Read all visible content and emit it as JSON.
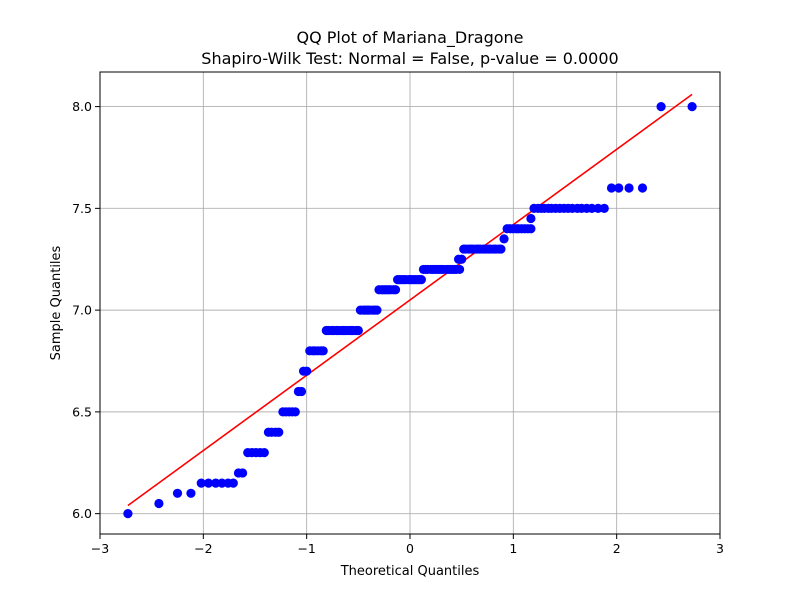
{
  "chart_data": {
    "type": "scatter",
    "title": "QQ Plot of Mariana_Dragone",
    "subtitle": "Shapiro-Wilk Test: Normal = False, p-value = 0.0000",
    "xlabel": "Theoretical Quantiles",
    "ylabel": "Sample Quantiles",
    "xlim": [
      -3,
      3
    ],
    "ylim": [
      5.9,
      8.17
    ],
    "xticks": [
      -3,
      -2,
      -1,
      0,
      1,
      2,
      3
    ],
    "xtick_labels": [
      "−3",
      "−2",
      "−1",
      "0",
      "1",
      "2",
      "3"
    ],
    "yticks": [
      6.0,
      6.5,
      7.0,
      7.5,
      8.0
    ],
    "ytick_labels": [
      "6.0",
      "6.5",
      "7.0",
      "7.5",
      "8.0"
    ],
    "grid": true,
    "point_color": "#0000ff",
    "line_color": "#ff0000",
    "reference_line": {
      "x": [
        -2.73,
        2.73
      ],
      "y": [
        6.04,
        8.06
      ]
    },
    "points": [
      [
        -2.73,
        6.0
      ],
      [
        -2.43,
        6.05
      ],
      [
        -2.25,
        6.1
      ],
      [
        -2.12,
        6.1
      ],
      [
        -2.02,
        6.15
      ],
      [
        -1.95,
        6.15
      ],
      [
        -1.88,
        6.15
      ],
      [
        -1.82,
        6.15
      ],
      [
        -1.76,
        6.15
      ],
      [
        -1.71,
        6.15
      ],
      [
        -1.66,
        6.2
      ],
      [
        -1.62,
        6.2
      ],
      [
        -1.57,
        6.3
      ],
      [
        -1.53,
        6.3
      ],
      [
        -1.49,
        6.3
      ],
      [
        -1.45,
        6.3
      ],
      [
        -1.41,
        6.3
      ],
      [
        -1.37,
        6.4
      ],
      [
        -1.34,
        6.4
      ],
      [
        -1.3,
        6.4
      ],
      [
        -1.27,
        6.4
      ],
      [
        -1.23,
        6.5
      ],
      [
        -1.2,
        6.5
      ],
      [
        -1.17,
        6.5
      ],
      [
        -1.14,
        6.5
      ],
      [
        -1.11,
        6.5
      ],
      [
        -1.08,
        6.6
      ],
      [
        -1.05,
        6.6
      ],
      [
        -1.03,
        6.7
      ],
      [
        -1.0,
        6.7
      ],
      [
        -0.97,
        6.8
      ],
      [
        -0.94,
        6.8
      ],
      [
        -0.92,
        6.8
      ],
      [
        -0.89,
        6.8
      ],
      [
        -0.86,
        6.8
      ],
      [
        -0.84,
        6.8
      ],
      [
        -0.81,
        6.9
      ],
      [
        -0.79,
        6.9
      ],
      [
        -0.76,
        6.9
      ],
      [
        -0.74,
        6.9
      ],
      [
        -0.71,
        6.9
      ],
      [
        -0.69,
        6.9
      ],
      [
        -0.66,
        6.9
      ],
      [
        -0.64,
        6.9
      ],
      [
        -0.62,
        6.9
      ],
      [
        -0.59,
        6.9
      ],
      [
        -0.57,
        6.9
      ],
      [
        -0.55,
        6.9
      ],
      [
        -0.52,
        6.9
      ],
      [
        -0.5,
        6.9
      ],
      [
        -0.48,
        7.0
      ],
      [
        -0.45,
        7.0
      ],
      [
        -0.43,
        7.0
      ],
      [
        -0.41,
        7.0
      ],
      [
        -0.39,
        7.0
      ],
      [
        -0.36,
        7.0
      ],
      [
        -0.34,
        7.0
      ],
      [
        -0.32,
        7.0
      ],
      [
        -0.3,
        7.1
      ],
      [
        -0.27,
        7.1
      ],
      [
        -0.25,
        7.1
      ],
      [
        -0.23,
        7.1
      ],
      [
        -0.21,
        7.1
      ],
      [
        -0.19,
        7.1
      ],
      [
        -0.16,
        7.1
      ],
      [
        -0.14,
        7.1
      ],
      [
        -0.12,
        7.15
      ],
      [
        -0.1,
        7.15
      ],
      [
        -0.08,
        7.15
      ],
      [
        -0.06,
        7.15
      ],
      [
        -0.04,
        7.15
      ],
      [
        -0.01,
        7.15
      ],
      [
        0.01,
        7.15
      ],
      [
        0.03,
        7.15
      ],
      [
        0.05,
        7.15
      ],
      [
        0.07,
        7.15
      ],
      [
        0.09,
        7.15
      ],
      [
        0.11,
        7.15
      ],
      [
        0.13,
        7.2
      ],
      [
        0.15,
        7.2
      ],
      [
        0.17,
        7.2
      ],
      [
        0.2,
        7.2
      ],
      [
        0.22,
        7.2
      ],
      [
        0.24,
        7.2
      ],
      [
        0.26,
        7.2
      ],
      [
        0.28,
        7.2
      ],
      [
        0.3,
        7.2
      ],
      [
        0.32,
        7.2
      ],
      [
        0.35,
        7.2
      ],
      [
        0.37,
        7.2
      ],
      [
        0.39,
        7.2
      ],
      [
        0.41,
        7.2
      ],
      [
        0.43,
        7.2
      ],
      [
        0.45,
        7.2
      ],
      [
        0.48,
        7.2
      ],
      [
        0.47,
        7.25
      ],
      [
        0.5,
        7.25
      ],
      [
        0.52,
        7.3
      ],
      [
        0.54,
        7.3
      ],
      [
        0.57,
        7.3
      ],
      [
        0.59,
        7.3
      ],
      [
        0.61,
        7.3
      ],
      [
        0.64,
        7.3
      ],
      [
        0.66,
        7.3
      ],
      [
        0.68,
        7.3
      ],
      [
        0.71,
        7.3
      ],
      [
        0.73,
        7.3
      ],
      [
        0.76,
        7.3
      ],
      [
        0.78,
        7.3
      ],
      [
        0.81,
        7.3
      ],
      [
        0.83,
        7.3
      ],
      [
        0.86,
        7.3
      ],
      [
        0.88,
        7.3
      ],
      [
        0.91,
        7.35
      ],
      [
        0.94,
        7.4
      ],
      [
        0.97,
        7.4
      ],
      [
        1.0,
        7.4
      ],
      [
        1.03,
        7.4
      ],
      [
        1.05,
        7.4
      ],
      [
        1.08,
        7.4
      ],
      [
        1.11,
        7.4
      ],
      [
        1.14,
        7.4
      ],
      [
        1.17,
        7.4
      ],
      [
        1.17,
        7.45
      ],
      [
        1.2,
        7.5
      ],
      [
        1.24,
        7.5
      ],
      [
        1.27,
        7.5
      ],
      [
        1.3,
        7.5
      ],
      [
        1.34,
        7.5
      ],
      [
        1.37,
        7.5
      ],
      [
        1.41,
        7.5
      ],
      [
        1.45,
        7.5
      ],
      [
        1.49,
        7.5
      ],
      [
        1.53,
        7.5
      ],
      [
        1.57,
        7.5
      ],
      [
        1.62,
        7.5
      ],
      [
        1.66,
        7.5
      ],
      [
        1.71,
        7.5
      ],
      [
        1.76,
        7.5
      ],
      [
        1.82,
        7.5
      ],
      [
        1.88,
        7.5
      ],
      [
        1.95,
        7.6
      ],
      [
        2.02,
        7.6
      ],
      [
        2.12,
        7.6
      ],
      [
        2.25,
        7.6
      ],
      [
        2.43,
        8.0
      ],
      [
        2.73,
        8.0
      ]
    ]
  }
}
